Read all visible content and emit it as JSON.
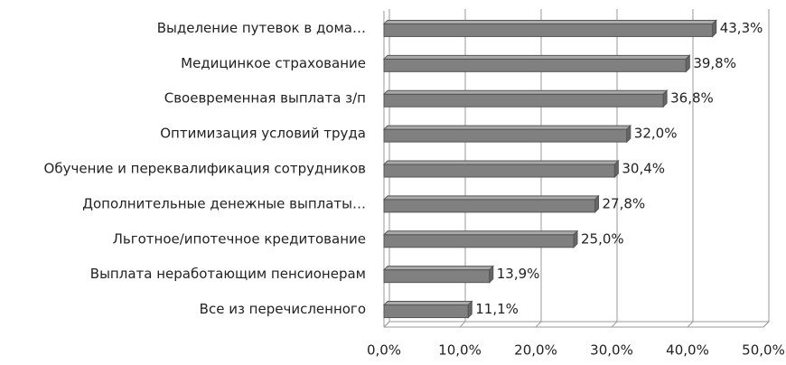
{
  "chart_data": {
    "type": "bar",
    "orientation": "horizontal",
    "categories": [
      "Выделение путевок в дома…",
      "Медицинкое страхование",
      "Своевременная выплата з/п",
      "Оптимизация условий труда",
      "Обучение и переквалификация сотрудников",
      "Дополнительные денежные выплаты…",
      "Льготное/ипотечное кредитование",
      "Выплата неработающим пенсионерам",
      "Все из перечисленного"
    ],
    "values": [
      43.3,
      39.8,
      36.8,
      32.0,
      30.4,
      27.8,
      25.0,
      13.9,
      11.1
    ],
    "value_labels": [
      "43,3%",
      "39,8%",
      "36,8%",
      "32,0%",
      "30,4%",
      "27,8%",
      "25,0%",
      "13,9%",
      "11,1%"
    ],
    "color": "#808080",
    "xlim": [
      0,
      50
    ],
    "xticks": [
      {
        "value": 0,
        "label": "0,0%"
      },
      {
        "value": 10,
        "label": "10,0%"
      },
      {
        "value": 20,
        "label": "20,0%"
      },
      {
        "value": 30,
        "label": "30,0%"
      },
      {
        "value": 40,
        "label": "40,0%"
      },
      {
        "value": 50,
        "label": "50,0%"
      }
    ],
    "grid": true
  }
}
